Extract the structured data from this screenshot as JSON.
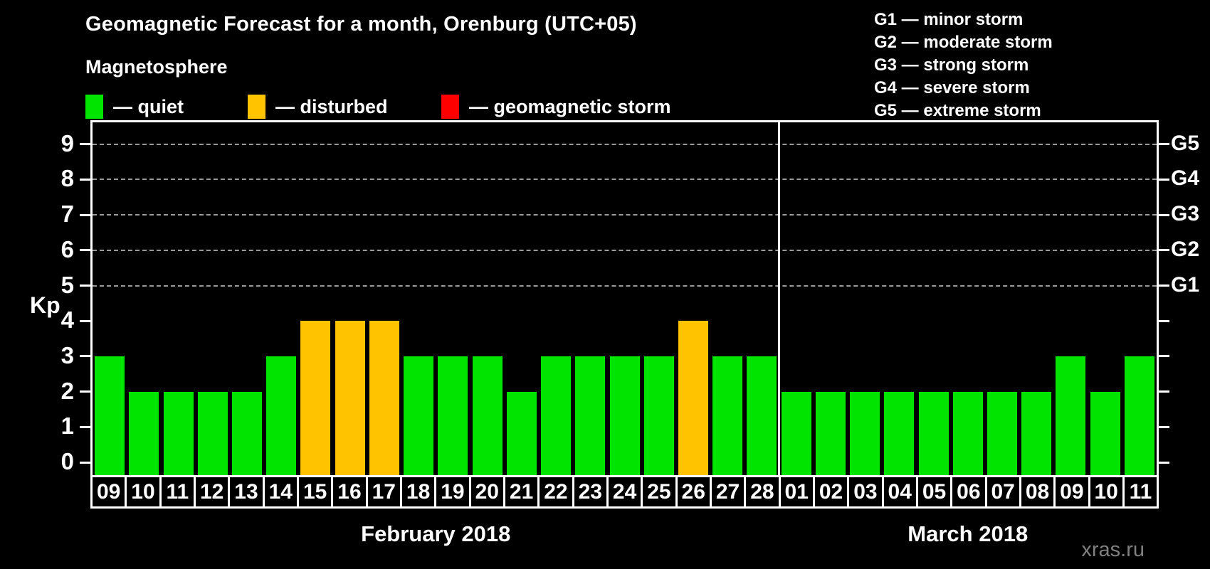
{
  "header": {
    "title": "Geomagnetic Forecast for a month, Orenburg (UTC+05)"
  },
  "magnetosphere_legend": {
    "title": "Magnetosphere",
    "items": [
      {
        "name": "quiet",
        "label": "— quiet",
        "color": "#00E400"
      },
      {
        "name": "disturbed",
        "label": "— disturbed",
        "color": "#FFC300"
      },
      {
        "name": "geomagnetic-storm",
        "label": "— geomagnetic storm",
        "color": "#FF0000"
      }
    ]
  },
  "g_scale_legend": {
    "lines": [
      "G1 — minor storm",
      "G2 — moderate storm",
      "G3 — strong storm",
      "G4 — severe storm",
      "G5 — extreme storm"
    ]
  },
  "watermark": "xras.ru",
  "chart_data": {
    "type": "bar",
    "title": "Geomagnetic Forecast for a month, Orenburg (UTC+05)",
    "xlabel": "",
    "ylabel": "Kp",
    "ylim": [
      0,
      9
    ],
    "yticks": [
      0,
      1,
      2,
      3,
      4,
      5,
      6,
      7,
      8,
      9
    ],
    "grid_levels": [
      5,
      6,
      7,
      8,
      9
    ],
    "grid_style": "dashed",
    "legend_position": "top",
    "right_axis_labels": [
      {
        "kp": 5,
        "label": "G1"
      },
      {
        "kp": 6,
        "label": "G2"
      },
      {
        "kp": 7,
        "label": "G3"
      },
      {
        "kp": 8,
        "label": "G4"
      },
      {
        "kp": 9,
        "label": "G5"
      }
    ],
    "colors": {
      "quiet": "#00E400",
      "disturbed": "#FFC300",
      "storm": "#FF0000"
    },
    "color_rule": {
      "quiet_max_kp": 3,
      "disturbed_kp": 4,
      "storm_min_kp": 5
    },
    "months": [
      {
        "label": "February 2018",
        "days": [
          "09",
          "10",
          "11",
          "12",
          "13",
          "14",
          "15",
          "16",
          "17",
          "18",
          "19",
          "20",
          "21",
          "22",
          "23",
          "24",
          "25",
          "26",
          "27",
          "28"
        ],
        "values": [
          3,
          2,
          2,
          2,
          2,
          3,
          4,
          4,
          4,
          3,
          3,
          3,
          2,
          3,
          3,
          3,
          3,
          4,
          3,
          3
        ]
      },
      {
        "label": "March 2018",
        "days": [
          "01",
          "02",
          "03",
          "04",
          "05",
          "06",
          "07",
          "08",
          "09",
          "10",
          "11"
        ],
        "values": [
          2,
          2,
          2,
          2,
          2,
          2,
          2,
          2,
          3,
          2,
          3
        ]
      }
    ]
  }
}
